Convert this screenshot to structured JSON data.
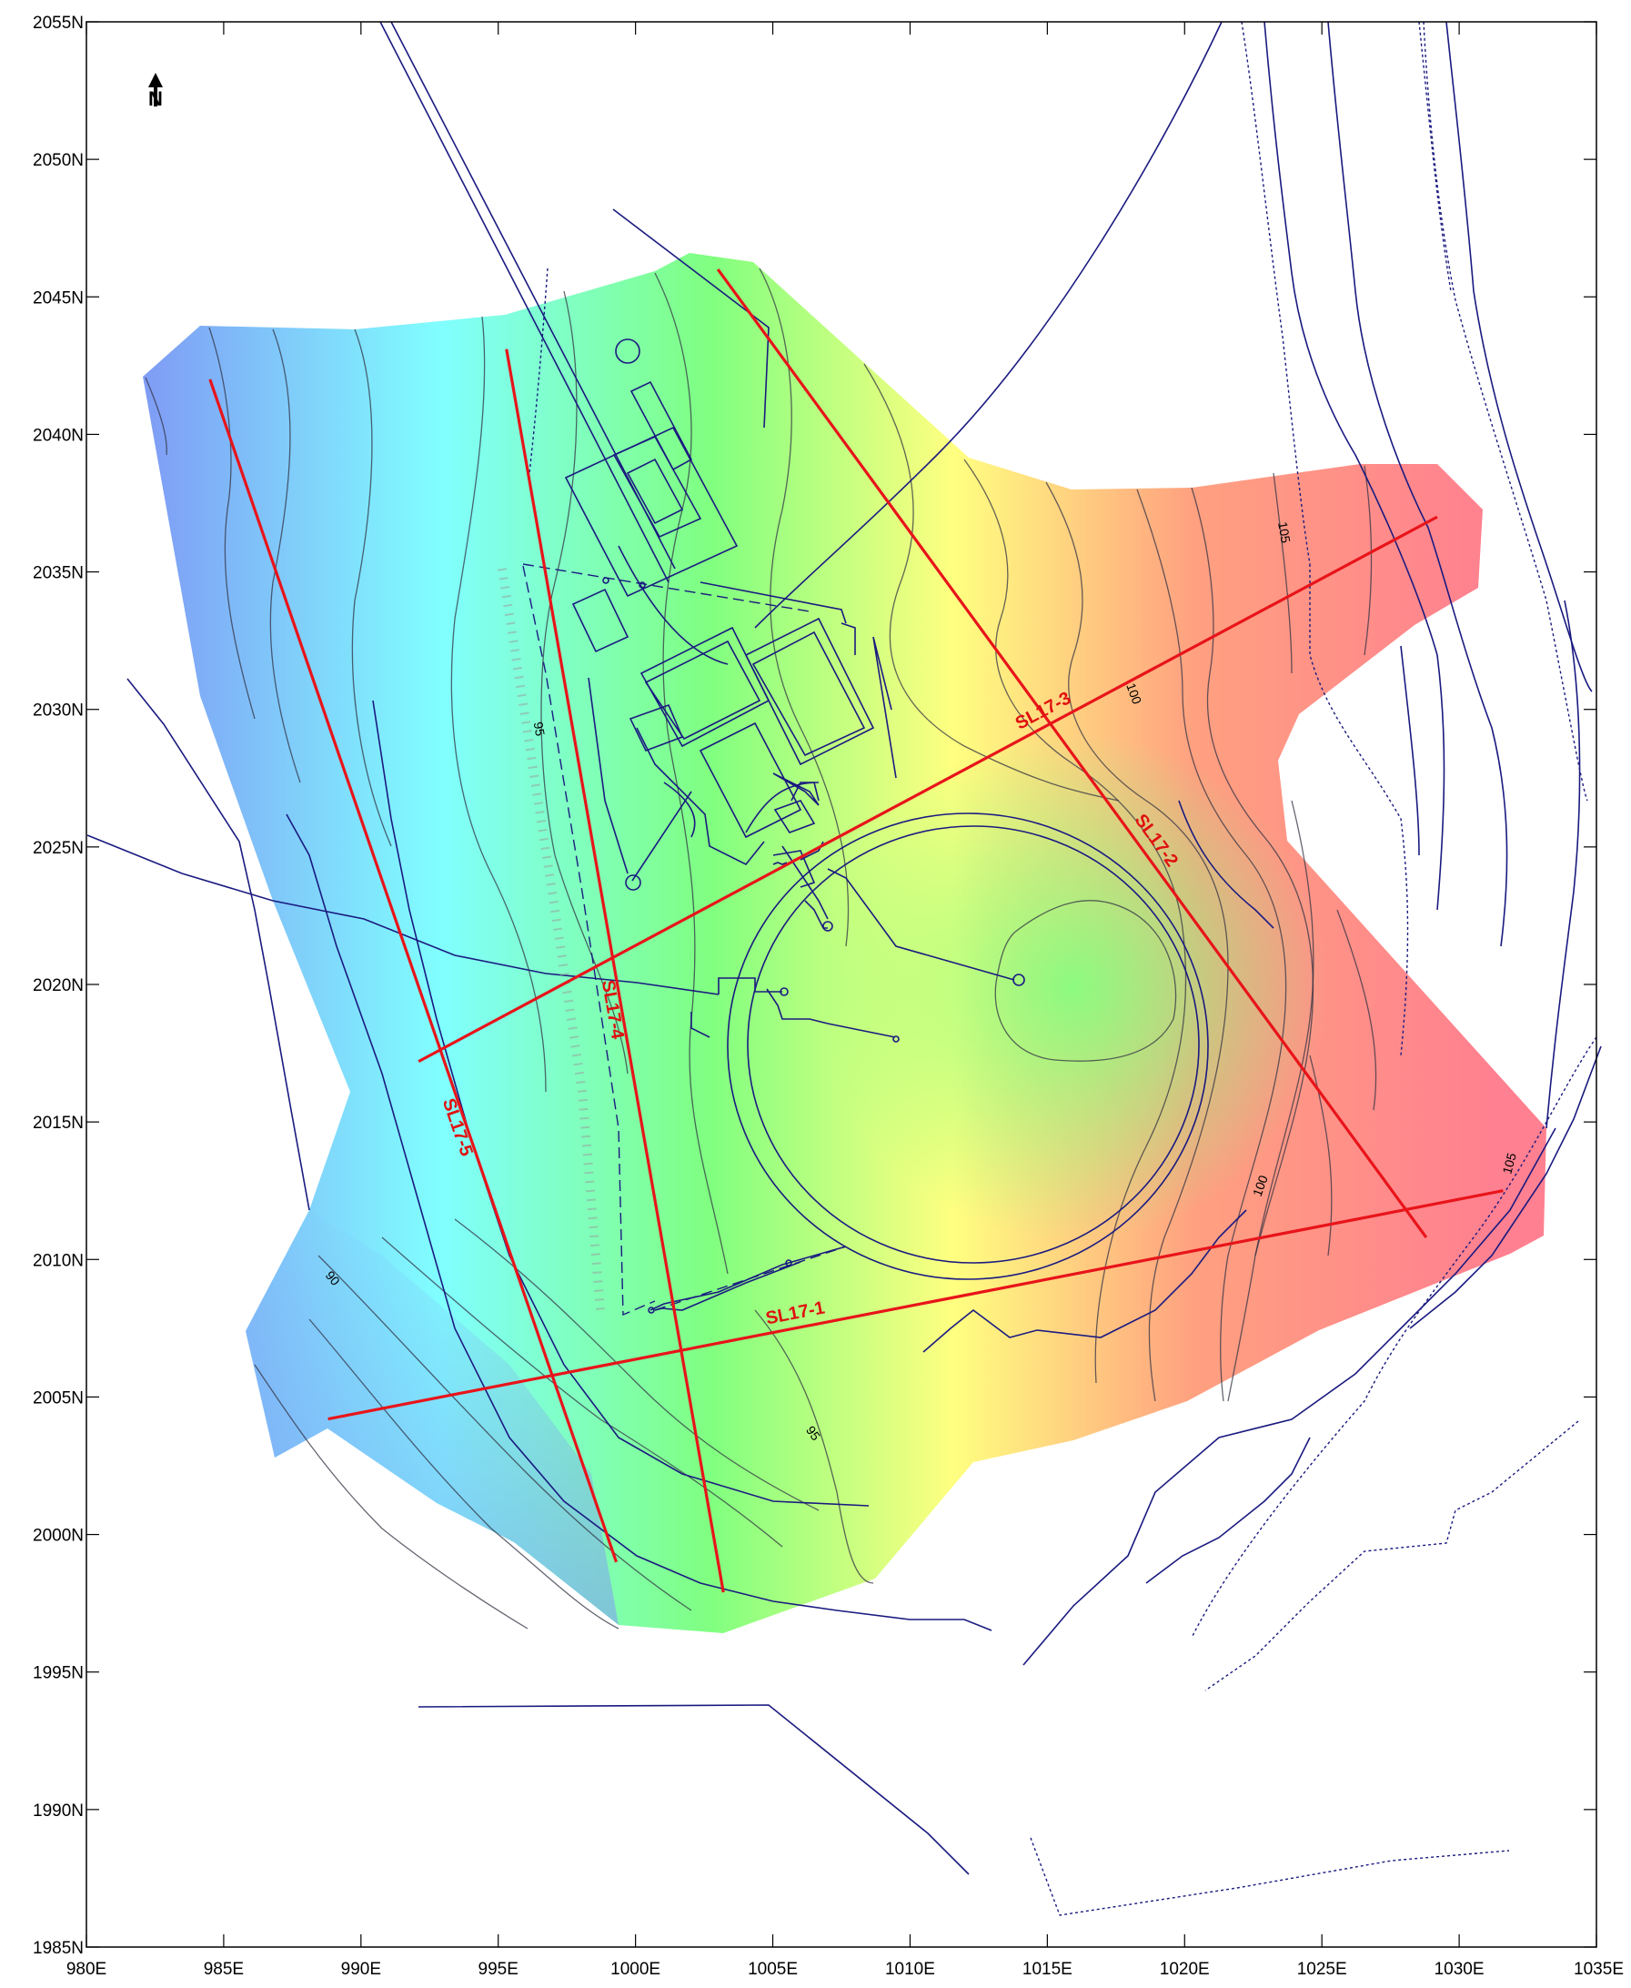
{
  "north_arrow": {
    "label": "N"
  },
  "axes": {
    "x_ticks": [
      "980E",
      "985E",
      "990E",
      "995E",
      "1000E",
      "1005E",
      "1010E",
      "1015E",
      "1020E",
      "1025E",
      "1030E",
      "1035E"
    ],
    "y_ticks": [
      "2055N",
      "2050N",
      "2045N",
      "2040N",
      "2035N",
      "2030N",
      "2025N",
      "2020N",
      "2015N",
      "2010N",
      "2005N",
      "2000N",
      "1995N",
      "1990N",
      "1985N"
    ],
    "x_range": [
      980,
      1035
    ],
    "y_range": [
      1985,
      2055
    ]
  },
  "survey_lines": [
    {
      "name": "SL17-1",
      "start": [
        988.8,
        2004.2
      ],
      "end": [
        1031.6,
        2012.5
      ]
    },
    {
      "name": "SL17-2",
      "start": [
        1003.0,
        2046.0
      ],
      "end": [
        1028.8,
        2010.8
      ]
    },
    {
      "name": "SL17-3",
      "start": [
        992.1,
        2017.2
      ],
      "end": [
        1029.2,
        2037.0
      ]
    },
    {
      "name": "SL17-4",
      "start": [
        995.3,
        2043.1
      ],
      "end": [
        1003.2,
        1997.9
      ]
    },
    {
      "name": "SL17-5",
      "start": [
        984.5,
        2042.0
      ],
      "end": [
        999.3,
        1999.0
      ]
    }
  ],
  "contour_labels": [
    "105",
    "100",
    "95",
    "95",
    "90",
    "100",
    "105"
  ],
  "colors": {
    "survey_line": "#e8141a",
    "features": "#1a1a80",
    "contour": "#333344",
    "low": "#7f9cf5",
    "mid_low": "#80ffff",
    "mid": "#80ff80",
    "mid_high": "#ffff80",
    "high": "#ff8090"
  }
}
